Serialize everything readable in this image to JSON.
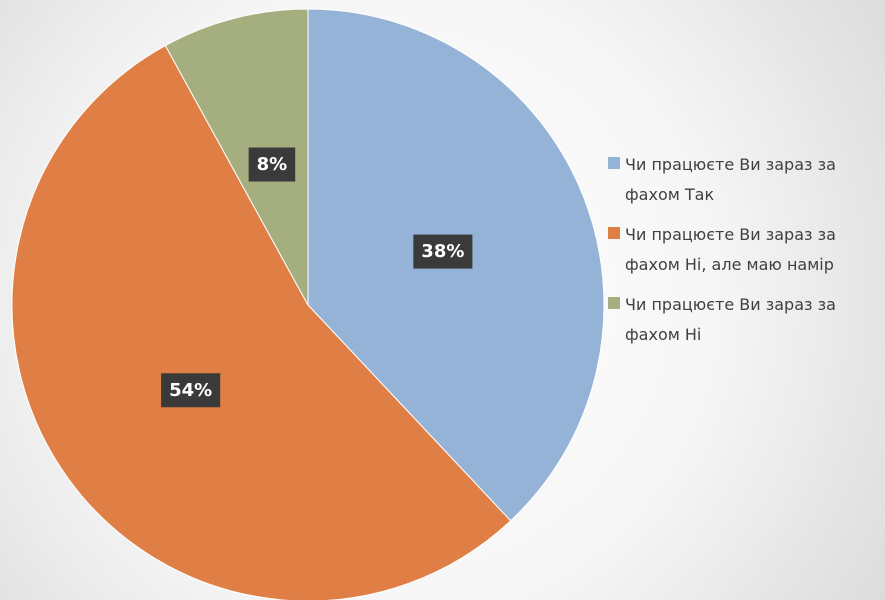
{
  "chart_data": {
    "type": "pie",
    "categories": [
      "Чи працюєте Ви зараз за фахом Так",
      "Чи працюєте Ви зараз за фахом Ні, але маю намір",
      "Чи працюєте Ви зараз за фахом Ні"
    ],
    "values": [
      38,
      54,
      8
    ],
    "value_labels": [
      "38%",
      "54%",
      "8%"
    ],
    "colors": [
      "#95b3d7",
      "#e07f45",
      "#a5ae7e"
    ],
    "legend": "right"
  }
}
